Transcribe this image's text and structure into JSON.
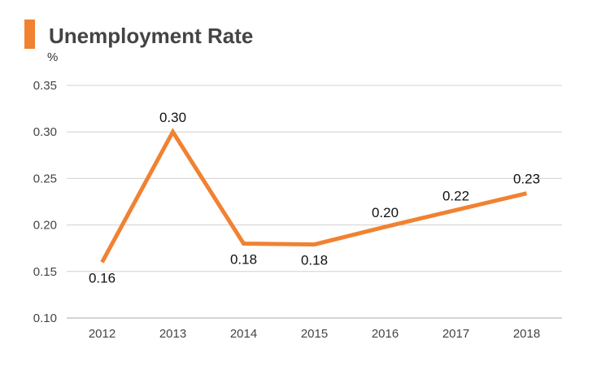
{
  "chart_data": {
    "type": "line",
    "title": "Unemployment Rate",
    "ylabel": "%",
    "xlabel": "",
    "categories": [
      "2012",
      "2013",
      "2014",
      "2015",
      "2016",
      "2017",
      "2018"
    ],
    "series": [
      {
        "values": [
          0.16,
          0.3,
          0.18,
          0.179,
          0.198,
          0.216,
          0.234
        ]
      }
    ],
    "data_labels": [
      "0.16",
      "0.30",
      "0.18",
      "0.18",
      "0.20",
      "0.22",
      "0.23"
    ],
    "label_position": [
      "below",
      "above",
      "below",
      "below",
      "above",
      "above",
      "above"
    ],
    "ylim": [
      0.1,
      0.35
    ],
    "yticks": [
      "0.10",
      "0.15",
      "0.20",
      "0.25",
      "0.30",
      "0.35"
    ],
    "grid": true,
    "legend": "none",
    "colors": {
      "line": "#f08232",
      "accent": "#f08232",
      "grid": "#d0d0d0"
    }
  }
}
